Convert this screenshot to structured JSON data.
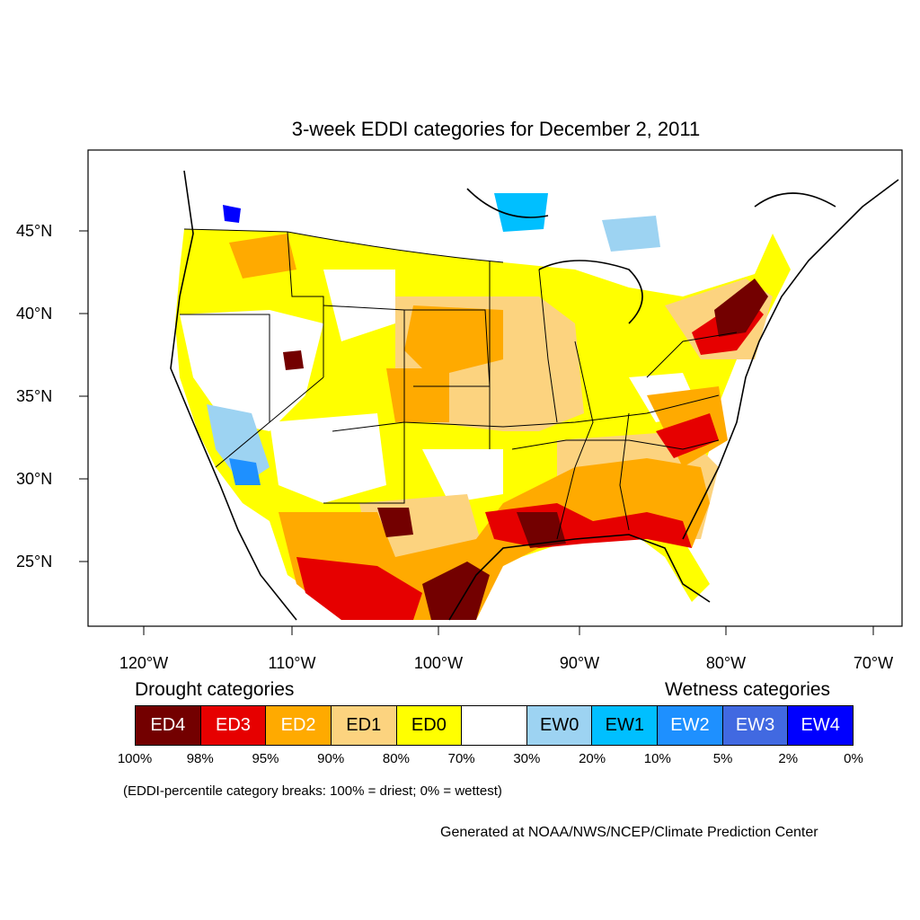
{
  "title": "3-week EDDI categories for December 2, 2011",
  "map": {
    "lat_labels": [
      "45°N",
      "40°N",
      "35°N",
      "30°N",
      "25°N"
    ],
    "lon_labels": [
      "120°W",
      "110°W",
      "100°W",
      "90°W",
      "80°W",
      "70°W"
    ]
  },
  "legend": {
    "drought_heading": "Drought categories",
    "wetness_heading": "Wetness categories",
    "categories": [
      {
        "label": "ED4",
        "color": "#730000",
        "text_color": "#ffffff"
      },
      {
        "label": "ED3",
        "color": "#e60000",
        "text_color": "#ffffff"
      },
      {
        "label": "ED2",
        "color": "#ffaa00",
        "text_color": "#ffffff"
      },
      {
        "label": "ED1",
        "color": "#fcd37f",
        "text_color": "#000000"
      },
      {
        "label": "ED0",
        "color": "#ffff00",
        "text_color": "#000000"
      },
      {
        "label": "",
        "color": "#ffffff",
        "text_color": "#000000"
      },
      {
        "label": "EW0",
        "color": "#9dd3f2",
        "text_color": "#000000"
      },
      {
        "label": "EW1",
        "color": "#00bfff",
        "text_color": "#000000"
      },
      {
        "label": "EW2",
        "color": "#1e90ff",
        "text_color": "#ffffff"
      },
      {
        "label": "EW3",
        "color": "#4169e1",
        "text_color": "#ffffff"
      },
      {
        "label": "EW4",
        "color": "#0000ff",
        "text_color": "#ffffff"
      }
    ],
    "breaks": [
      "100%",
      "98%",
      "95%",
      "90%",
      "80%",
      "70%",
      "30%",
      "20%",
      "10%",
      "5%",
      "2%",
      "0%"
    ],
    "note": "(EDDI-percentile category breaks: 100% = driest; 0% = wettest)"
  },
  "credit": "Generated at NOAA/NWS/NCEP/Climate Prediction Center"
}
